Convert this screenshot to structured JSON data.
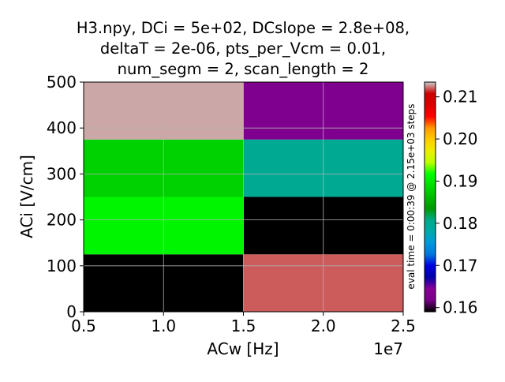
{
  "chart_data": {
    "type": "heatmap",
    "title_lines": [
      "H3.npy, DCi = 5e+02,  DCslope = 2.8e+08,",
      "deltaT = 2e-06, pts_per_Vcm = 0.01,",
      "num_segm = 2,  scan_length = 2"
    ],
    "xlabel": "ACw [Hz]",
    "ylabel": "ACi [V/cm]",
    "x_offset_label": "1e7",
    "x_ticks": [
      {
        "value": 0.5,
        "label": "0.5"
      },
      {
        "value": 1.0,
        "label": "1.0"
      },
      {
        "value": 1.5,
        "label": "1.5"
      },
      {
        "value": 2.0,
        "label": "2.0"
      },
      {
        "value": 2.5,
        "label": "2.5"
      }
    ],
    "y_ticks": [
      {
        "value": 0,
        "label": "0"
      },
      {
        "value": 100,
        "label": "100"
      },
      {
        "value": 200,
        "label": "200"
      },
      {
        "value": 300,
        "label": "300"
      },
      {
        "value": 400,
        "label": "400"
      },
      {
        "value": 500,
        "label": "500"
      }
    ],
    "xlim": [
      0.5,
      2.5
    ],
    "ylim": [
      0,
      500
    ],
    "grid": true,
    "x_edges": [
      0.5,
      1.5,
      2.5
    ],
    "y_edges": [
      0,
      125,
      250,
      375,
      500
    ],
    "values": [
      [
        0.158,
        0.212
      ],
      [
        0.191,
        0.159
      ],
      [
        0.188,
        0.18
      ],
      [
        0.213,
        0.163
      ]
    ],
    "colorbar": {
      "colormap": "nipy_spectral",
      "vmin": 0.159,
      "vmax": 0.2135,
      "ticks": [
        {
          "value": 0.16,
          "label": "0.16"
        },
        {
          "value": 0.17,
          "label": "0.17"
        },
        {
          "value": 0.18,
          "label": "0.18"
        },
        {
          "value": 0.19,
          "label": "0.19"
        },
        {
          "value": 0.2,
          "label": "0.20"
        },
        {
          "value": 0.21,
          "label": "0.21"
        }
      ],
      "label": "eval time = 0:00:39 @ 2.15e+03 steps"
    }
  }
}
